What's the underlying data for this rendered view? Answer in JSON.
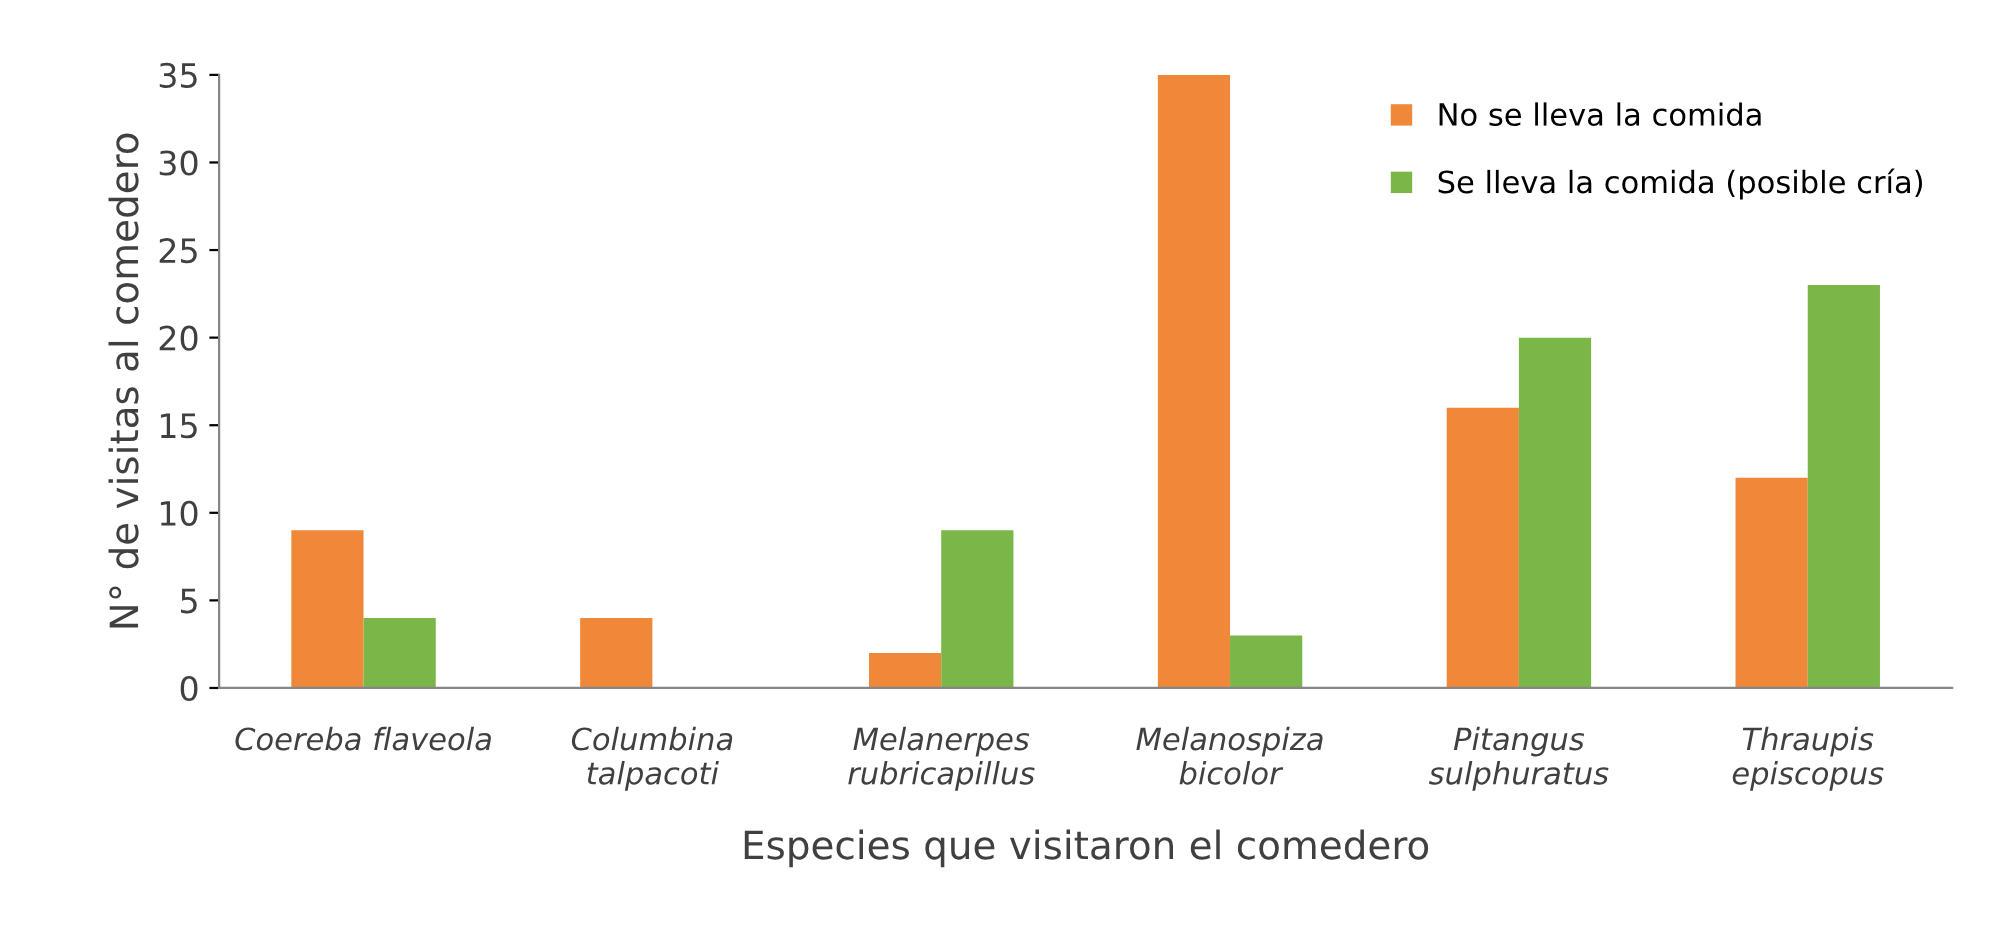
{
  "chart_data": {
    "type": "bar",
    "xlabel": "Especies que visitaron el comedero",
    "ylabel": "N° de visitas al comedero",
    "categories": [
      "Coereba flaveola",
      "Columbina\ntalpacoti",
      "Melanerpes\nrubricapillus",
      "Melanospiza\nbicolor",
      "Pitangus\nsulphuratus",
      "Thraupis\nepiscopus"
    ],
    "series": [
      {
        "name": "No se lleva la comida",
        "color": "#f0883a",
        "values": [
          9,
          4,
          2,
          35,
          16,
          12
        ]
      },
      {
        "name": "Se lleva la comida (posible cría)",
        "color": "#7ab648",
        "values": [
          4,
          0,
          9,
          3,
          20,
          23
        ]
      }
    ],
    "ylim": [
      0,
      35
    ],
    "yticks": [
      0,
      5,
      10,
      15,
      20,
      25,
      30,
      35
    ],
    "legend": "top right",
    "grid": false
  }
}
